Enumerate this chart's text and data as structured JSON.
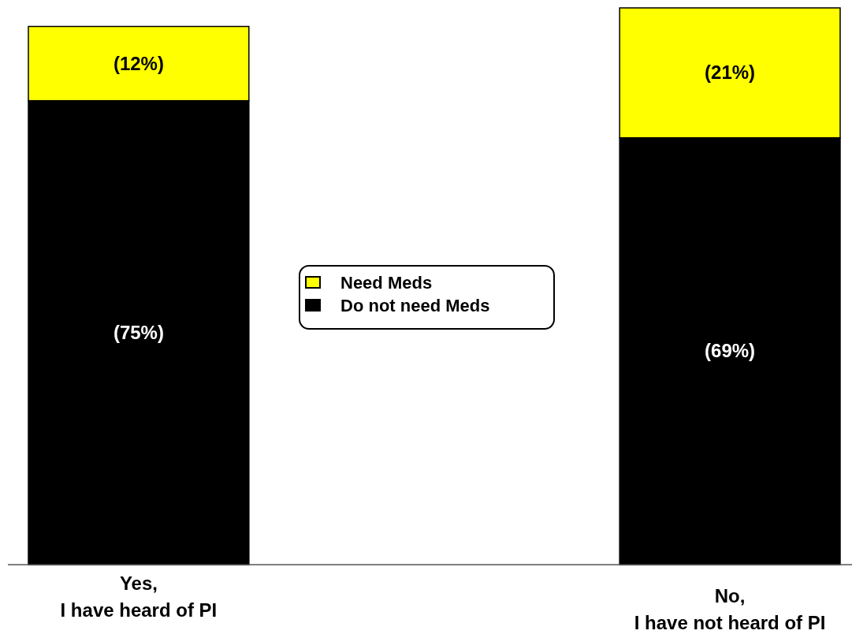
{
  "chart_data": {
    "type": "bar",
    "stacked": true,
    "categories": [
      "Yes,\nI have heard of PI",
      "No,\nI have not heard of PI"
    ],
    "series": [
      {
        "name": "Do not need Meds",
        "color": "#000000",
        "values": [
          75,
          69
        ],
        "value_labels": [
          "(75%)",
          "(69%)"
        ]
      },
      {
        "name": "Need Meds",
        "color": "#ffff00",
        "values": [
          12,
          21
        ],
        "value_labels": [
          "(12%)",
          "(21%)"
        ]
      }
    ],
    "legend": "center"
  }
}
